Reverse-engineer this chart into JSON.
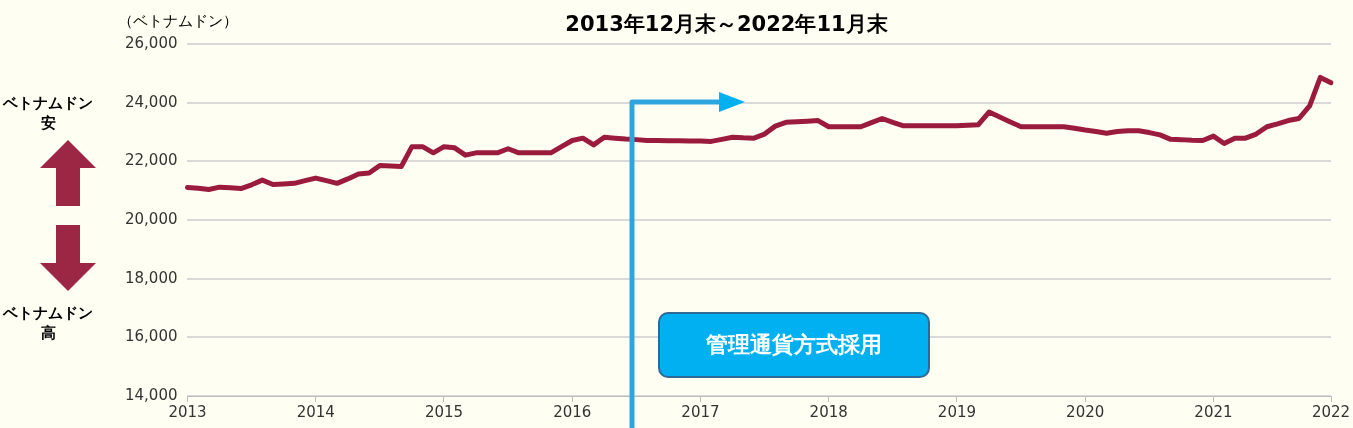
{
  "chart_data": {
    "type": "line",
    "title": "2013年12月末～2022年11月末",
    "ylabel": "（ベトナムドン）",
    "annotations": [
      "ベトナムドン安",
      "ベトナムドン高",
      "管理通貨方式採用"
    ],
    "categories": [
      "2013",
      null,
      null,
      null,
      null,
      null,
      null,
      null,
      null,
      null,
      null,
      null,
      "2014",
      null,
      null,
      null,
      null,
      null,
      null,
      null,
      null,
      null,
      null,
      null,
      "2015",
      null,
      null,
      null,
      null,
      null,
      null,
      null,
      null,
      null,
      null,
      null,
      "2016",
      null,
      null,
      null,
      null,
      null,
      null,
      null,
      null,
      null,
      null,
      null,
      "2017",
      null,
      null,
      null,
      null,
      null,
      null,
      null,
      null,
      null,
      null,
      null,
      "2018",
      null,
      null,
      null,
      null,
      null,
      null,
      null,
      null,
      null,
      null,
      null,
      "2019",
      null,
      null,
      null,
      null,
      null,
      null,
      null,
      null,
      null,
      null,
      null,
      "2020",
      null,
      null,
      null,
      null,
      null,
      null,
      null,
      null,
      null,
      null,
      null,
      "2021",
      null,
      null,
      null,
      null,
      null,
      null,
      null,
      null,
      null,
      null,
      "2022"
    ],
    "series": [
      {
        "color": "#9b1b3d",
        "values": [
          21110,
          21080,
          21040,
          21120,
          21100,
          21070,
          21200,
          21360,
          21210,
          21230,
          21250,
          21340,
          21430,
          21340,
          21250,
          21400,
          21570,
          21600,
          21860,
          21840,
          21820,
          22500,
          22500,
          22290,
          22500,
          22460,
          22210,
          22290,
          22290,
          22290,
          22430,
          22290,
          22290,
          22290,
          22290,
          22500,
          22710,
          22790,
          22560,
          22820,
          22790,
          22760,
          22740,
          22710,
          22710,
          22700,
          22700,
          22690,
          22690,
          22680,
          22750,
          22820,
          22800,
          22790,
          22930,
          23200,
          23330,
          23350,
          23370,
          23390,
          23180,
          23180,
          23180,
          23180,
          23320,
          23460,
          23330,
          23210,
          23210,
          23210,
          23210,
          23210,
          23210,
          23230,
          23250,
          23680,
          23510,
          23340,
          23180,
          23180,
          23180,
          23180,
          23180,
          23130,
          23070,
          23020,
          22960,
          23020,
          23040,
          23040,
          22980,
          22900,
          22750,
          22740,
          22720,
          22710,
          22860,
          22610,
          22790,
          22790,
          22930,
          23180,
          23280,
          23390,
          23460,
          23890,
          24860,
          24680
        ]
      }
    ],
    "ylim": [
      14000,
      26000
    ],
    "yticks": [
      {
        "value": 14000,
        "label": "14,000"
      },
      {
        "value": 16000,
        "label": "16,000"
      },
      {
        "value": 18000,
        "label": "18,000"
      },
      {
        "value": 20000,
        "label": "20,000"
      },
      {
        "value": 22000,
        "label": "22,000"
      },
      {
        "value": 24000,
        "label": "24,000"
      },
      {
        "value": 26000,
        "label": "26,000"
      }
    ],
    "grid": "y",
    "legend": false,
    "marker": "none",
    "line_style": "solid"
  }
}
